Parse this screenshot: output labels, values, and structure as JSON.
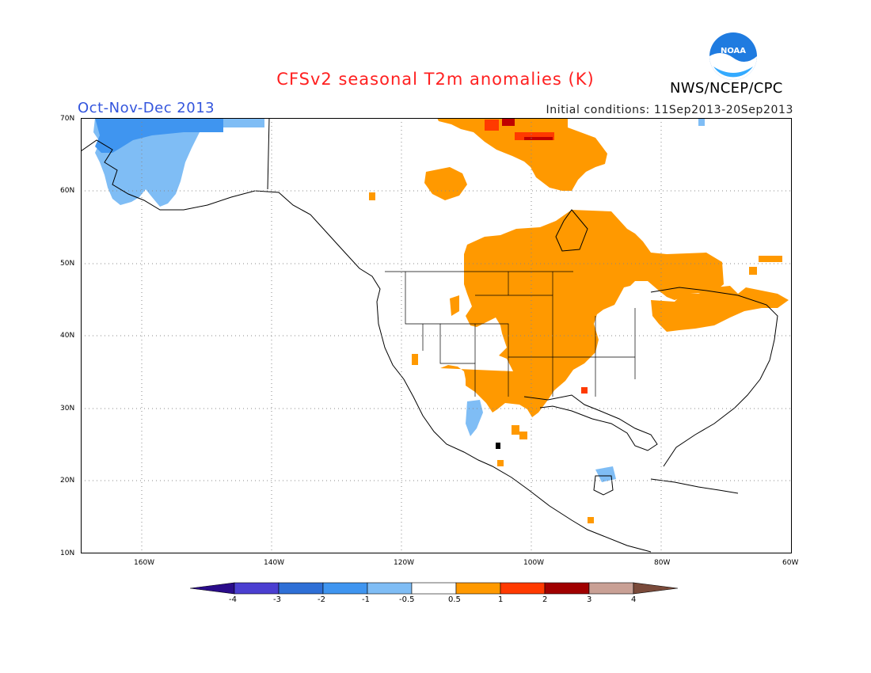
{
  "title": "CFSv2 seasonal T2m anomalies (K)",
  "period": "Oct-Nov-Dec 2013",
  "initial_conditions": "Initial conditions: 11Sep2013-20Sep2013",
  "agency": "NWS/NCEP/CPC",
  "logo_text": "NOAA",
  "lat_labels": [
    "70N",
    "60N",
    "50N",
    "40N",
    "30N",
    "20N",
    "10N"
  ],
  "lon_labels": [
    "160W",
    "140W",
    "120W",
    "100W",
    "80W",
    "60W"
  ],
  "colorbar": {
    "labels": [
      "-4",
      "-3",
      "-2",
      "-1",
      "-0.5",
      "0.5",
      "1",
      "2",
      "3",
      "4"
    ],
    "colors": [
      "#2a0c8a",
      "#4b3fd1",
      "#2e6fd6",
      "#3f95f0",
      "#7fbdf5",
      "#ffffff",
      "#ff9900",
      "#ff3a00",
      "#a00000",
      "#c9a095",
      "#7a4a3a"
    ]
  },
  "colors": {
    "warm": "#ff9900",
    "hot": "#ff3a00",
    "cool": "#7fbdf5",
    "cold": "#3f95f0"
  }
}
